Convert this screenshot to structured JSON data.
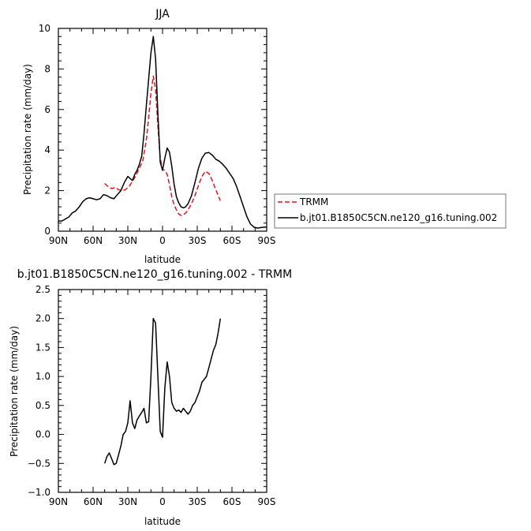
{
  "chart_data": [
    {
      "type": "line",
      "title": "JJA",
      "xlabel": "latitude",
      "ylabel": "Precipitation rate (mm/day)",
      "xlim": [
        -90,
        90
      ],
      "ylim": [
        0,
        10
      ],
      "x_ticks": [
        -90,
        -60,
        -30,
        0,
        30,
        60,
        90
      ],
      "x_tick_labels": [
        "90N",
        "60N",
        "30N",
        "0",
        "30S",
        "60S",
        "90S"
      ],
      "y_ticks": [
        0,
        2,
        4,
        6,
        8,
        10
      ],
      "y_tick_labels": [
        "0",
        "2",
        "4",
        "6",
        "8",
        "10"
      ],
      "legend": {
        "placement": "right"
      },
      "series": [
        {
          "name": "TRMM",
          "color": "#e8141a",
          "dash": "dashed",
          "x": [
            -50,
            -47,
            -44,
            -41,
            -38,
            -35,
            -32,
            -29,
            -26,
            -23,
            -20,
            -17,
            -14,
            -12,
            -10,
            -8,
            -6,
            -4,
            -2,
            0,
            2,
            4,
            6,
            8,
            10,
            12,
            14,
            16,
            18,
            20,
            22,
            25,
            28,
            31,
            34,
            37,
            40,
            43,
            46,
            50
          ],
          "y": [
            2.35,
            2.2,
            2.1,
            2.15,
            2.05,
            2.0,
            2.05,
            2.2,
            2.45,
            2.75,
            3.1,
            3.5,
            4.5,
            5.6,
            6.8,
            7.65,
            7.0,
            5.2,
            3.6,
            3.05,
            3.0,
            2.8,
            2.3,
            1.7,
            1.3,
            1.05,
            0.85,
            0.78,
            0.8,
            0.9,
            1.05,
            1.35,
            1.75,
            2.25,
            2.7,
            2.95,
            2.85,
            2.5,
            2.05,
            1.5
          ]
        },
        {
          "name": "b.jt01.B1850C5CN.ne120_g16.tuning.002",
          "color": "#000000",
          "dash": "solid",
          "x": [
            -90,
            -87,
            -84,
            -81,
            -78,
            -75,
            -72,
            -69,
            -66,
            -63,
            -60,
            -57,
            -54,
            -51,
            -48,
            -45,
            -42,
            -39,
            -36,
            -33,
            -30,
            -28,
            -26,
            -24,
            -22,
            -20,
            -18,
            -16,
            -14,
            -12,
            -10,
            -8,
            -6,
            -4,
            -2,
            0,
            2,
            4,
            6,
            8,
            10,
            12,
            14,
            16,
            18,
            20,
            22,
            25,
            28,
            31,
            34,
            37,
            40,
            43,
            46,
            49,
            52,
            55,
            58,
            61,
            64,
            67,
            70,
            73,
            76,
            79,
            82,
            85,
            88,
            90
          ],
          "y": [
            0.5,
            0.5,
            0.6,
            0.7,
            0.9,
            1.0,
            1.2,
            1.45,
            1.6,
            1.65,
            1.6,
            1.55,
            1.6,
            1.8,
            1.75,
            1.65,
            1.6,
            1.8,
            2.0,
            2.4,
            2.7,
            2.6,
            2.5,
            2.8,
            3.0,
            3.3,
            3.7,
            4.8,
            6.2,
            7.5,
            8.8,
            9.6,
            8.5,
            5.8,
            3.4,
            3.0,
            3.6,
            4.1,
            3.9,
            3.2,
            2.3,
            1.7,
            1.4,
            1.2,
            1.15,
            1.2,
            1.35,
            1.75,
            2.4,
            3.1,
            3.6,
            3.85,
            3.88,
            3.75,
            3.55,
            3.45,
            3.3,
            3.1,
            2.85,
            2.6,
            2.2,
            1.7,
            1.2,
            0.7,
            0.35,
            0.2,
            0.15,
            0.18,
            0.2,
            0.2
          ]
        }
      ]
    },
    {
      "type": "line",
      "title": "b.jt01.B1850C5CN.ne120_g16.tuning.002 - TRMM",
      "xlabel": "latitude",
      "ylabel": "Precipitation rate (mm/day)",
      "xlim": [
        -90,
        90
      ],
      "ylim": [
        -1.0,
        2.5
      ],
      "x_ticks": [
        -90,
        -60,
        -30,
        0,
        30,
        60,
        90
      ],
      "x_tick_labels": [
        "90N",
        "60N",
        "30N",
        "0",
        "30S",
        "60S",
        "90S"
      ],
      "y_ticks": [
        -1.0,
        -0.5,
        0.0,
        0.5,
        1.0,
        1.5,
        2.0,
        2.5
      ],
      "y_tick_labels": [
        "−1.0",
        "−0.5",
        "0.0",
        "0.5",
        "1.0",
        "1.5",
        "2.0",
        "2.5"
      ],
      "series": [
        {
          "color": "#000000",
          "dash": "solid",
          "x": [
            -50,
            -48,
            -46,
            -44,
            -42,
            -40,
            -38,
            -36,
            -34,
            -32,
            -30,
            -28,
            -26,
            -24,
            -22,
            -20,
            -18,
            -16,
            -14,
            -12,
            -10,
            -8,
            -6,
            -4,
            -2,
            0,
            2,
            4,
            6,
            8,
            10,
            12,
            14,
            16,
            18,
            20,
            22,
            24,
            26,
            28,
            30,
            32,
            34,
            36,
            38,
            40,
            42,
            44,
            46,
            48,
            50
          ],
          "y": [
            -0.5,
            -0.38,
            -0.32,
            -0.42,
            -0.52,
            -0.5,
            -0.35,
            -0.2,
            0.0,
            0.05,
            0.2,
            0.58,
            0.2,
            0.1,
            0.25,
            0.32,
            0.38,
            0.45,
            0.2,
            0.22,
            1.0,
            2.0,
            1.92,
            1.0,
            0.05,
            -0.05,
            0.8,
            1.25,
            1.0,
            0.55,
            0.45,
            0.4,
            0.42,
            0.38,
            0.45,
            0.4,
            0.35,
            0.4,
            0.5,
            0.55,
            0.65,
            0.75,
            0.9,
            0.95,
            1.0,
            1.15,
            1.3,
            1.45,
            1.55,
            1.75,
            2.0
          ]
        }
      ]
    }
  ]
}
